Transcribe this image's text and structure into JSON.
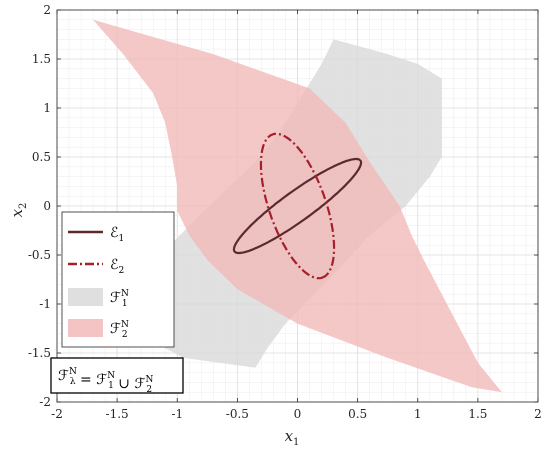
{
  "chart_data": {
    "type": "area",
    "title": "",
    "xlabel": "x1",
    "ylabel": "x2",
    "xlim": [
      -2,
      2
    ],
    "ylim": [
      -2,
      2
    ],
    "xticks": [
      "-2",
      "-1.5",
      "-1",
      "-0.5",
      "0",
      "0.5",
      "1",
      "1.5",
      "2"
    ],
    "yticks": [
      "-2",
      "-1.5",
      "-1",
      "-0.5",
      "0",
      "0.5",
      "1",
      "1.5",
      "2"
    ],
    "grid": true,
    "legend_position": "bottom-left",
    "series": [
      {
        "name": "F1N",
        "kind": "region",
        "color": "#d9d9d9",
        "points": [
          [
            0.3,
            1.7
          ],
          [
            0.75,
            1.55
          ],
          [
            1.0,
            1.45
          ],
          [
            1.2,
            1.3
          ],
          [
            1.2,
            0.5
          ],
          [
            1.1,
            0.3
          ],
          [
            1.0,
            0.15
          ],
          [
            0.9,
            0.0
          ],
          [
            0.75,
            -0.15
          ],
          [
            0.6,
            -0.3
          ],
          [
            0.45,
            -0.5
          ],
          [
            0.3,
            -0.7
          ],
          [
            0.1,
            -0.95
          ],
          [
            -0.1,
            -1.2
          ],
          [
            -0.25,
            -1.45
          ],
          [
            -0.35,
            -1.65
          ],
          [
            -0.95,
            -1.55
          ],
          [
            -1.25,
            -1.35
          ],
          [
            -1.25,
            -0.65
          ],
          [
            -1.1,
            -0.45
          ],
          [
            -0.9,
            -0.2
          ],
          [
            -0.65,
            0.1
          ],
          [
            -0.35,
            0.45
          ],
          [
            -0.15,
            0.75
          ],
          [
            0.05,
            1.15
          ],
          [
            0.2,
            1.45
          ]
        ]
      },
      {
        "name": "F2N",
        "kind": "region",
        "color": "#f2b8b8",
        "points": [
          [
            -1.7,
            1.9
          ],
          [
            -0.7,
            1.55
          ],
          [
            0.1,
            1.2
          ],
          [
            0.4,
            0.85
          ],
          [
            0.6,
            0.45
          ],
          [
            0.85,
            0.0
          ],
          [
            0.95,
            -0.3
          ],
          [
            1.05,
            -0.55
          ],
          [
            1.2,
            -0.9
          ],
          [
            1.35,
            -1.25
          ],
          [
            1.5,
            -1.6
          ],
          [
            1.7,
            -1.9
          ],
          [
            1.45,
            -1.85
          ],
          [
            0.75,
            -1.55
          ],
          [
            0.0,
            -1.2
          ],
          [
            -0.5,
            -0.85
          ],
          [
            -0.75,
            -0.55
          ],
          [
            -0.9,
            -0.3
          ],
          [
            -1.0,
            -0.05
          ],
          [
            -1.0,
            0.2
          ],
          [
            -1.05,
            0.55
          ],
          [
            -1.1,
            0.85
          ],
          [
            -1.2,
            1.15
          ],
          [
            -1.45,
            1.55
          ]
        ]
      },
      {
        "name": "E1",
        "kind": "ellipse",
        "color": "#5c2a2d",
        "line": "solid",
        "center": [
          0,
          0
        ],
        "semi_axes": [
          0.7,
          0.14
        ],
        "angle_deg": 42
      },
      {
        "name": "E2",
        "kind": "ellipse",
        "color": "#a5202a",
        "line": "dashdot",
        "center": [
          0,
          0
        ],
        "semi_axes": [
          0.76,
          0.24
        ],
        "angle_deg": -75
      }
    ],
    "legend": {
      "entries": [
        {
          "key": "E1",
          "main": "ℰ",
          "sub": "1",
          "sup": ""
        },
        {
          "key": "E2",
          "main": "ℰ",
          "sub": "2",
          "sup": ""
        },
        {
          "key": "F1N",
          "main": "ℱ",
          "sub": "1",
          "sup": "N"
        },
        {
          "key": "F2N",
          "main": "ℱ",
          "sub": "2",
          "sup": "N"
        }
      ]
    },
    "annotation": {
      "parts": [
        {
          "main": "ℱ",
          "sub": "λ",
          "sup": "N"
        },
        {
          "main": " = ℱ",
          "sub": "1",
          "sup": "N"
        },
        {
          "main": " ∪ ℱ",
          "sub": "2",
          "sup": "N"
        }
      ]
    }
  }
}
